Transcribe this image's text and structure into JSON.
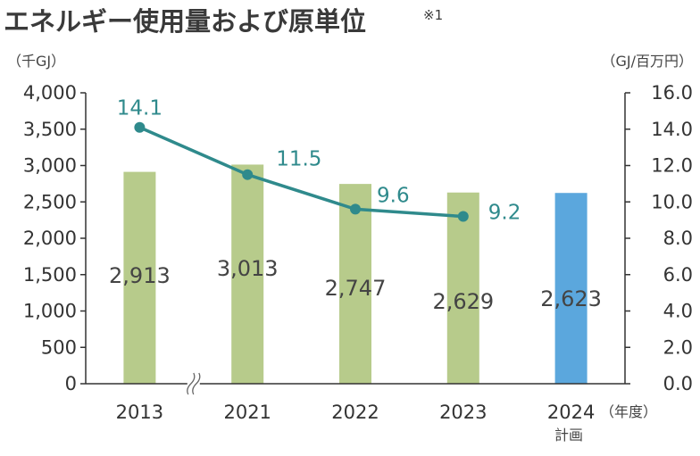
{
  "title": "エネルギー使用量および原単位",
  "title_note": "※1",
  "left_unit": "（千GJ）",
  "right_unit": "（GJ/百万円）",
  "x_unit": "（年度）",
  "plan_note": "計画",
  "colors": {
    "bar": "#b7cb8b",
    "bar_plan": "#5ba7dd",
    "line": "#2f8a8c",
    "axis": "#333333",
    "grid": "#dddddd"
  },
  "chart_data": {
    "type": "bar",
    "categories": [
      "2013",
      "2021",
      "2022",
      "2023",
      "2024"
    ],
    "series": [
      {
        "type": "bar",
        "axis": "left",
        "values": [
          2913,
          3013,
          2747,
          2629,
          2623
        ],
        "labels": [
          "2,913",
          "3,013",
          "2,747",
          "2,629",
          "2,623"
        ]
      },
      {
        "type": "line",
        "axis": "right",
        "values": [
          14.1,
          11.5,
          9.6,
          9.2,
          null
        ],
        "labels": [
          "14.1",
          "11.5",
          "9.6",
          "9.2",
          ""
        ]
      }
    ],
    "y_left": {
      "lim": [
        0,
        4000
      ],
      "ticks": [
        "0",
        "500",
        "1,000",
        "1,500",
        "2,000",
        "2,500",
        "3,000",
        "3,500",
        "4,000"
      ]
    },
    "y_right": {
      "lim": [
        0,
        16
      ],
      "ticks": [
        "0.0",
        "2.0",
        "4.0",
        "6.0",
        "8.0",
        "10.0",
        "12.0",
        "14.0",
        "16.0"
      ]
    },
    "plan_index": 4,
    "axis_break_after_index": 0
  }
}
